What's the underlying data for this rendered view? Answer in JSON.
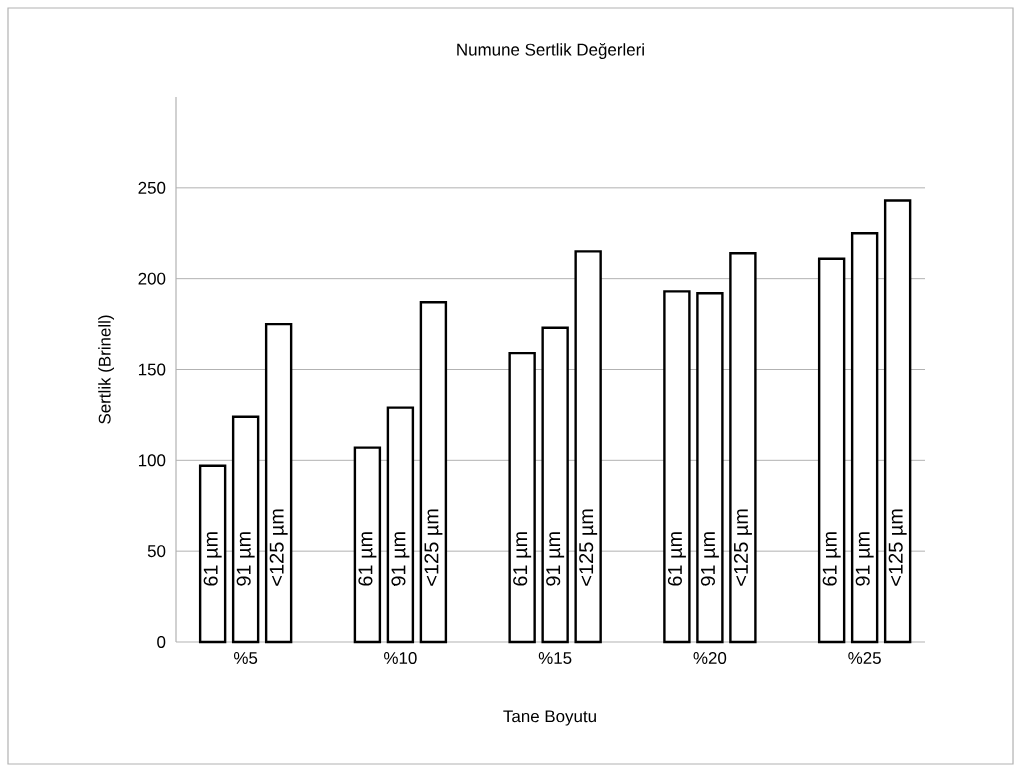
{
  "chart_data": {
    "type": "bar",
    "title": "Numune Sertlik Değerleri",
    "xlabel": "Tane Boyutu",
    "ylabel": "Sertlik (Brinell)",
    "categories": [
      "%5",
      "%10",
      "%15",
      "%20",
      "%25"
    ],
    "series": [
      {
        "name": "61 µm",
        "color": "#ffffff",
        "values": [
          97,
          107,
          159,
          193,
          211
        ]
      },
      {
        "name": "91 µm",
        "color": "#ffffff",
        "values": [
          124,
          129,
          173,
          192,
          225
        ]
      },
      {
        "name": "<125 µm",
        "color": "#ffffff",
        "values": [
          175,
          187,
          215,
          214,
          243
        ]
      }
    ],
    "ylim": [
      0,
      300
    ],
    "yticks": [
      0,
      50,
      100,
      150,
      200,
      250
    ],
    "grid": "y"
  }
}
